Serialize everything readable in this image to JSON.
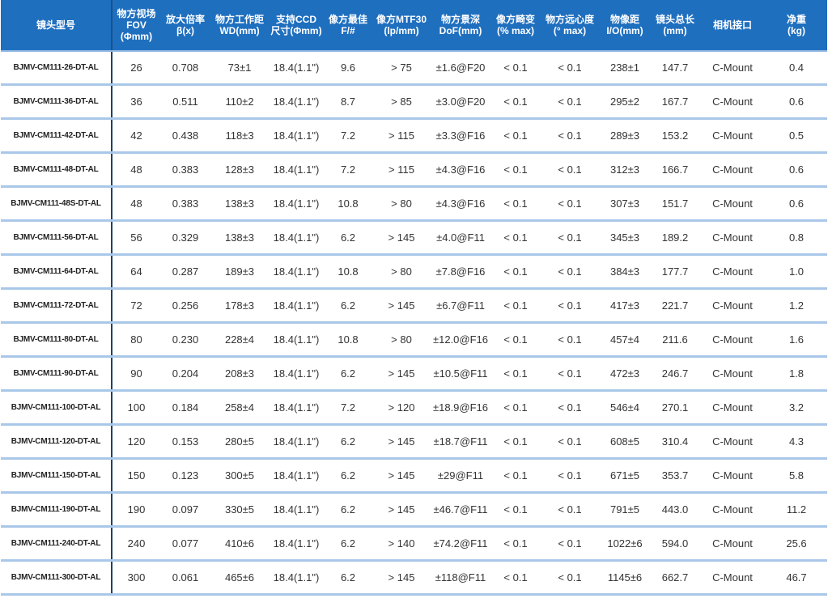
{
  "table": {
    "headers": [
      [
        "镜头型号"
      ],
      [
        "物方视场",
        "FOV",
        "(Φmm)"
      ],
      [
        "放大倍率",
        "β(x)"
      ],
      [
        "物方工作距",
        "WD(mm)"
      ],
      [
        "支持CCD",
        "尺寸(Φmm)"
      ],
      [
        "像方最佳",
        "F/#"
      ],
      [
        "像方MTF30",
        "(lp/mm)"
      ],
      [
        "物方景深",
        "DoF(mm)"
      ],
      [
        "像方畸变",
        "(% max)"
      ],
      [
        "物方远心度",
        "(° max)"
      ],
      [
        "物像距",
        "I/O(mm)"
      ],
      [
        "镜头总长",
        "(mm)"
      ],
      [
        "相机接口"
      ],
      [
        "净重",
        "(kg)"
      ]
    ],
    "rows": [
      [
        "BJMV-CM111-26-DT-AL",
        "26",
        "0.708",
        "73±1",
        "18.4(1.1\")",
        "9.6",
        "> 75",
        "±1.6@F20",
        "< 0.1",
        "< 0.1",
        "238±1",
        "147.7",
        "C-Mount",
        "0.4"
      ],
      [
        "BJMV-CM111-36-DT-AL",
        "36",
        "0.511",
        "110±2",
        "18.4(1.1\")",
        "8.7",
        "> 85",
        "±3.0@F20",
        "< 0.1",
        "< 0.1",
        "295±2",
        "167.7",
        "C-Mount",
        "0.6"
      ],
      [
        "BJMV-CM111-42-DT-AL",
        "42",
        "0.438",
        "118±3",
        "18.4(1.1\")",
        "7.2",
        "> 115",
        "±3.3@F16",
        "< 0.1",
        "< 0.1",
        "289±3",
        "153.2",
        "C-Mount",
        "0.5"
      ],
      [
        "BJMV-CM111-48-DT-AL",
        "48",
        "0.383",
        "128±3",
        "18.4(1.1\")",
        "7.2",
        "> 115",
        "±4.3@F16",
        "< 0.1",
        "< 0.1",
        "312±3",
        "166.7",
        "C-Mount",
        "0.6"
      ],
      [
        "BJMV-CM111-48S-DT-AL",
        "48",
        "0.383",
        "138±3",
        "18.4(1.1\")",
        "10.8",
        "> 80",
        "±4.3@F16",
        "< 0.1",
        "< 0.1",
        "307±3",
        "151.7",
        "C-Mount",
        "0.6"
      ],
      [
        "BJMV-CM111-56-DT-AL",
        "56",
        "0.329",
        "138±3",
        "18.4(1.1\")",
        "6.2",
        "> 145",
        "±4.0@F11",
        "< 0.1",
        "< 0.1",
        "345±3",
        "189.2",
        "C-Mount",
        "0.8"
      ],
      [
        "BJMV-CM111-64-DT-AL",
        "64",
        "0.287",
        "189±3",
        "18.4(1.1\")",
        "10.8",
        "> 80",
        "±7.8@F16",
        "< 0.1",
        "< 0.1",
        "384±3",
        "177.7",
        "C-Mount",
        "1.0"
      ],
      [
        "BJMV-CM111-72-DT-AL",
        "72",
        "0.256",
        "178±3",
        "18.4(1.1\")",
        "6.2",
        "> 145",
        "±6.7@F11",
        "< 0.1",
        "< 0.1",
        "417±3",
        "221.7",
        "C-Mount",
        "1.2"
      ],
      [
        "BJMV-CM111-80-DT-AL",
        "80",
        "0.230",
        "228±4",
        "18.4(1.1\")",
        "10.8",
        "> 80",
        "±12.0@F16",
        "< 0.1",
        "< 0.1",
        "457±4",
        "211.6",
        "C-Mount",
        "1.6"
      ],
      [
        "BJMV-CM111-90-DT-AL",
        "90",
        "0.204",
        "208±3",
        "18.4(1.1\")",
        "6.2",
        "> 145",
        "±10.5@F11",
        "< 0.1",
        "< 0.1",
        "472±3",
        "246.7",
        "C-Mount",
        "1.8"
      ],
      [
        "BJMV-CM111-100-DT-AL",
        "100",
        "0.184",
        "258±4",
        "18.4(1.1\")",
        "7.2",
        "> 120",
        "±18.9@F16",
        "< 0.1",
        "< 0.1",
        "546±4",
        "270.1",
        "C-Mount",
        "3.2"
      ],
      [
        "BJMV-CM111-120-DT-AL",
        "120",
        "0.153",
        "280±5",
        "18.4(1.1\")",
        "6.2",
        "> 145",
        "±18.7@F11",
        "< 0.1",
        "< 0.1",
        "608±5",
        "310.4",
        "C-Mount",
        "4.3"
      ],
      [
        "BJMV-CM111-150-DT-AL",
        "150",
        "0.123",
        "300±5",
        "18.4(1.1\")",
        "6.2",
        "> 145",
        "±29@F11",
        "< 0.1",
        "< 0.1",
        "671±5",
        "353.7",
        "C-Mount",
        "5.8"
      ],
      [
        "BJMV-CM111-190-DT-AL",
        "190",
        "0.097",
        "330±5",
        "18.4(1.1\")",
        "6.2",
        "> 145",
        "±46.7@F11",
        "< 0.1",
        "< 0.1",
        "791±5",
        "443.0",
        "C-Mount",
        "11.2"
      ],
      [
        "BJMV-CM111-240-DT-AL",
        "240",
        "0.077",
        "410±6",
        "18.4(1.1\")",
        "6.2",
        "> 140",
        "±74.2@F11",
        "< 0.1",
        "< 0.1",
        "1022±6",
        "594.0",
        "C-Mount",
        "25.6"
      ],
      [
        "BJMV-CM111-300-DT-AL",
        "300",
        "0.061",
        "465±6",
        "18.4(1.1\")",
        "6.2",
        "> 145",
        "±118@F11",
        "< 0.1",
        "< 0.1",
        "1145±6",
        "662.7",
        "C-Mount",
        "46.7"
      ]
    ]
  }
}
